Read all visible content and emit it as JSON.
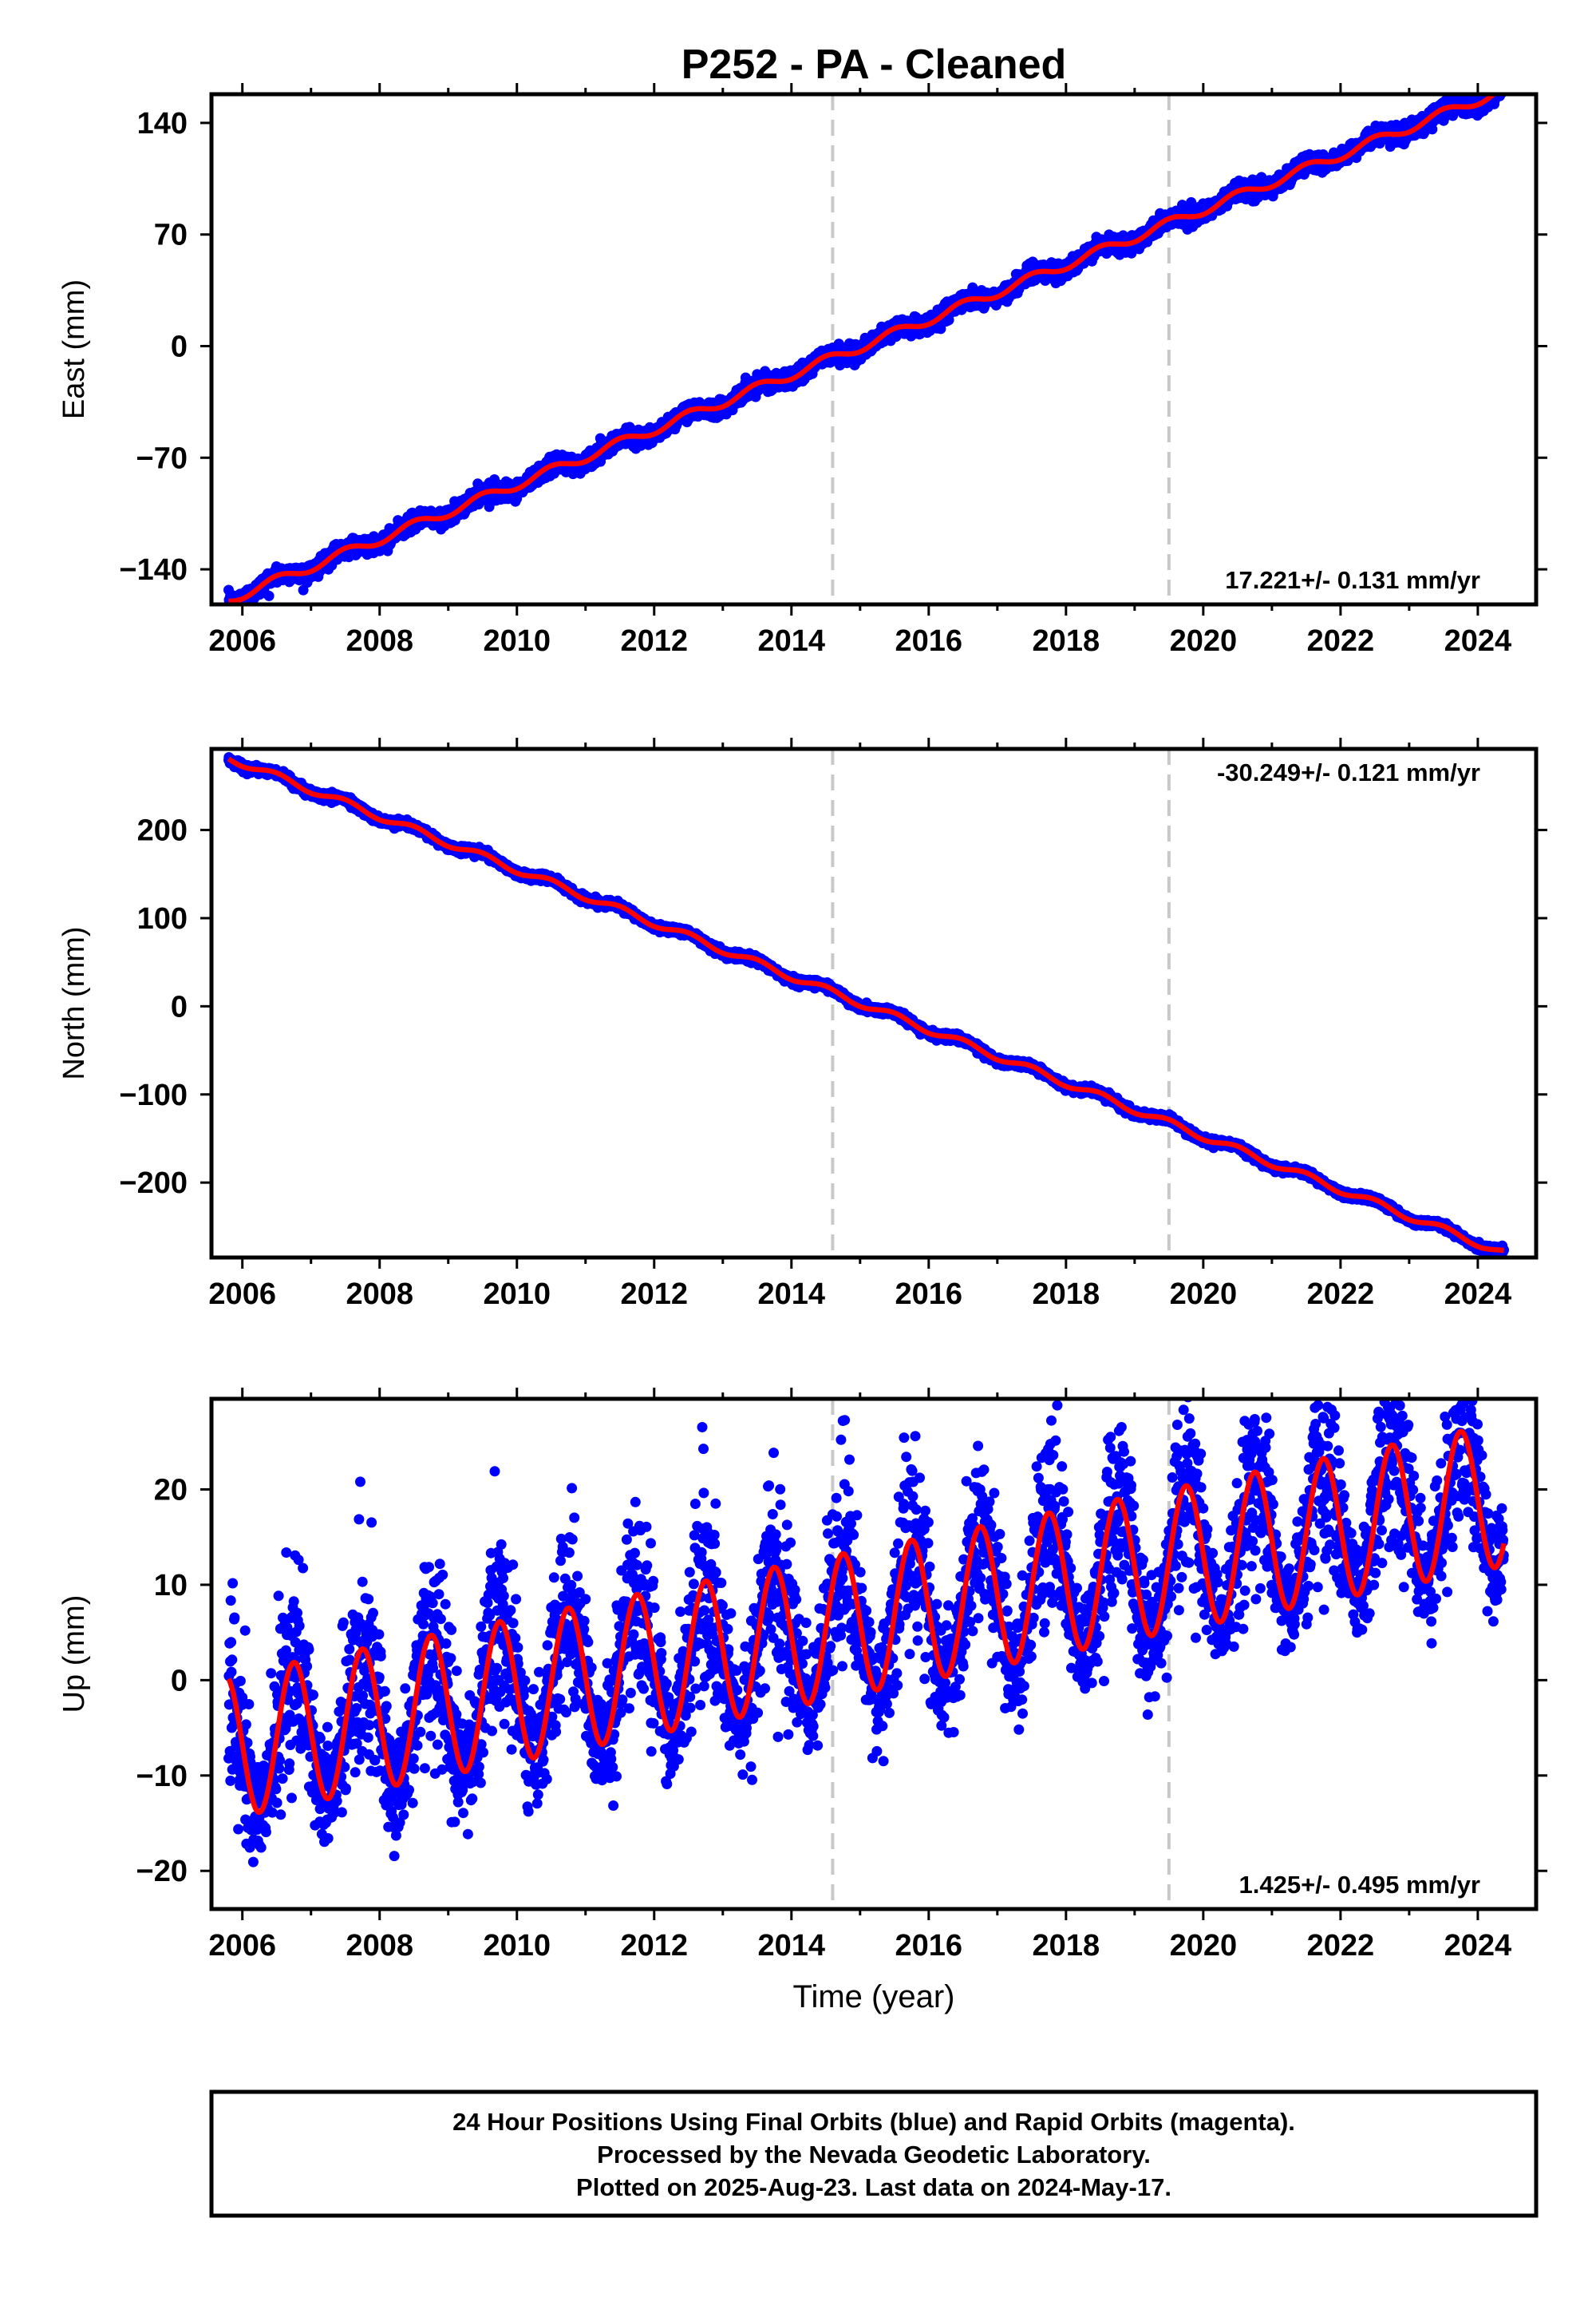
{
  "title": "P252  - PA - Cleaned",
  "colors": {
    "data": "#0000ff",
    "model": "#ff0000",
    "frame": "#000000",
    "event_line": "#c8c8c8"
  },
  "footer": {
    "line1": "24 Hour Positions Using Final Orbits (blue) and Rapid Orbits (magenta).",
    "line2": "Processed by the Nevada Geodetic Laboratory.",
    "line3": "Plotted on 2025-Aug-23. Last data on 2024-May-17."
  },
  "chart_data": [
    {
      "type": "scatter",
      "component": "east",
      "ylabel": "East (mm)",
      "xlabel": "",
      "xlim": [
        2005.55,
        2024.85
      ],
      "ylim": [
        -162,
        158
      ],
      "x_ticks": [
        "2006",
        "2008",
        "2010",
        "2012",
        "2014",
        "2016",
        "2018",
        "2020",
        "2022",
        "2024"
      ],
      "y_ticks": [
        "140",
        "70",
        "0",
        "−70",
        "−140"
      ],
      "y_tick_values": [
        140,
        70,
        0,
        -70,
        -140
      ],
      "rate_label": "17.221+/- 0.131 mm/yr",
      "rate_position": "bottom-right",
      "event_lines": [
        2014.6,
        2019.5
      ],
      "data_start": 2005.8,
      "data_end": 2024.38,
      "trend": {
        "value_at_start": -159,
        "rate_mm_per_yr": 17.221
      },
      "seasonal_amplitude": 3,
      "scatter": 2.5,
      "series": [
        {
          "name": "Final Orbits (blue)"
        },
        {
          "name": "model"
        }
      ]
    },
    {
      "type": "scatter",
      "component": "north",
      "ylabel": "North (mm)",
      "xlabel": "",
      "xlim": [
        2005.55,
        2024.85
      ],
      "ylim": [
        -285,
        292
      ],
      "x_ticks": [
        "2006",
        "2008",
        "2010",
        "2012",
        "2014",
        "2016",
        "2018",
        "2020",
        "2022",
        "2024"
      ],
      "y_ticks": [
        "200",
        "100",
        "0",
        "−100",
        "−200"
      ],
      "y_tick_values": [
        200,
        100,
        0,
        -100,
        -200
      ],
      "rate_label": "-30.249+/- 0.121 mm/yr",
      "rate_position": "top-right",
      "event_lines": [
        2014.6,
        2019.5
      ],
      "data_start": 2005.8,
      "data_end": 2024.38,
      "trend": {
        "value_at_start": 282,
        "rate_mm_per_yr": -30.249
      },
      "seasonal_amplitude": 4,
      "scatter": 2,
      "series": [
        {
          "name": "Final Orbits (blue)"
        },
        {
          "name": "model"
        }
      ]
    },
    {
      "type": "scatter",
      "component": "up",
      "ylabel": "Up (mm)",
      "xlabel": "Time (year)",
      "xlim": [
        2005.55,
        2024.85
      ],
      "ylim": [
        -24,
        29.5
      ],
      "x_ticks": [
        "2006",
        "2008",
        "2010",
        "2012",
        "2014",
        "2016",
        "2018",
        "2020",
        "2022",
        "2024"
      ],
      "y_ticks": [
        "20",
        "10",
        "0",
        "−10",
        "−20"
      ],
      "y_tick_values": [
        20,
        10,
        0,
        -10,
        -20
      ],
      "rate_label": "1.425+/- 0.495 mm/yr",
      "rate_position": "bottom-right",
      "event_lines": [
        2014.6,
        2019.5
      ],
      "data_start": 2005.8,
      "data_end": 2024.38,
      "trend": {
        "value_at_start": -7,
        "rate_mm_per_yr": 1.425
      },
      "seasonal_amplitude": 7.5,
      "seasonal_peak_phase": 0.75,
      "scatter": 4,
      "series": [
        {
          "name": "Final Orbits (blue)"
        },
        {
          "name": "model"
        }
      ]
    }
  ]
}
